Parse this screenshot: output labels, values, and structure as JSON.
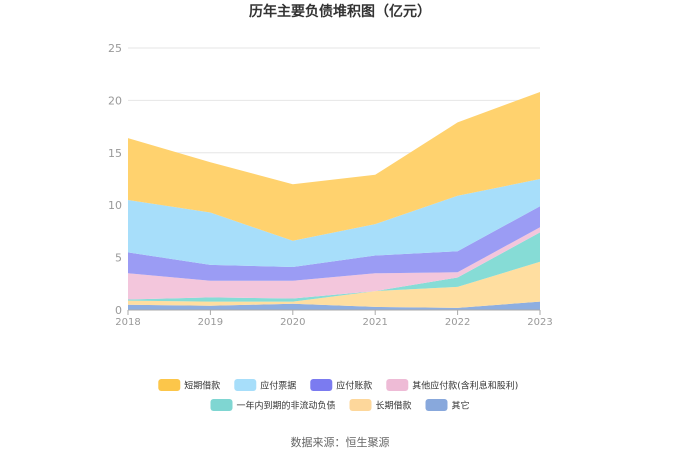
{
  "chart_data": {
    "type": "area",
    "stacked": true,
    "title": "历年主要负债堆积图（亿元）",
    "x": [
      "2018",
      "2019",
      "2020",
      "2021",
      "2022",
      "2023"
    ],
    "ylim": [
      0,
      25
    ],
    "yticks": [
      "0",
      "5",
      "10",
      "15",
      "20",
      "25"
    ],
    "grid": true,
    "legend_position": "bottom",
    "series": [
      {
        "name": "其它",
        "color": "#8eaee0",
        "values": [
          0.5,
          0.4,
          0.6,
          0.3,
          0.2,
          0.8
        ]
      },
      {
        "name": "长期借款",
        "color": "#ffdea0",
        "values": [
          0.4,
          0.4,
          0.2,
          1.5,
          2.0,
          3.8
        ]
      },
      {
        "name": "一年内到期的非流动负债",
        "color": "#86dcd6",
        "values": [
          0.1,
          0.4,
          0.3,
          0.0,
          0.9,
          2.8
        ]
      },
      {
        "name": "其他应付款(含利息和股利)",
        "color": "#f3c6dc",
        "values": [
          2.5,
          1.6,
          1.7,
          1.7,
          0.5,
          0.5
        ]
      },
      {
        "name": "应付账款",
        "color": "#9b9cf4",
        "values": [
          2.0,
          1.5,
          1.3,
          1.7,
          2.0,
          2.0
        ]
      },
      {
        "name": "应付票据",
        "color": "#a7defa",
        "values": [
          5.0,
          5.0,
          2.5,
          3.0,
          5.3,
          2.6
        ]
      },
      {
        "name": "短期借款",
        "color": "#ffd26e",
        "values": [
          5.9,
          4.8,
          5.4,
          4.7,
          7.0,
          8.3
        ]
      }
    ]
  },
  "legend": {
    "row1": [
      {
        "label": "短期借款",
        "color": "#fcc64a"
      },
      {
        "label": "应付票据",
        "color": "#a7defa"
      },
      {
        "label": "应付账款",
        "color": "#7b7bf0"
      },
      {
        "label": "其他应付款(含利息和股利)",
        "color": "#eebbd6"
      }
    ],
    "row2": [
      {
        "label": "一年内到期的非流动负债",
        "color": "#7fd6d2"
      },
      {
        "label": "长期借款",
        "color": "#fdd79b"
      },
      {
        "label": "其它",
        "color": "#88a8dc"
      }
    ]
  },
  "source": "数据来源：恒生聚源"
}
